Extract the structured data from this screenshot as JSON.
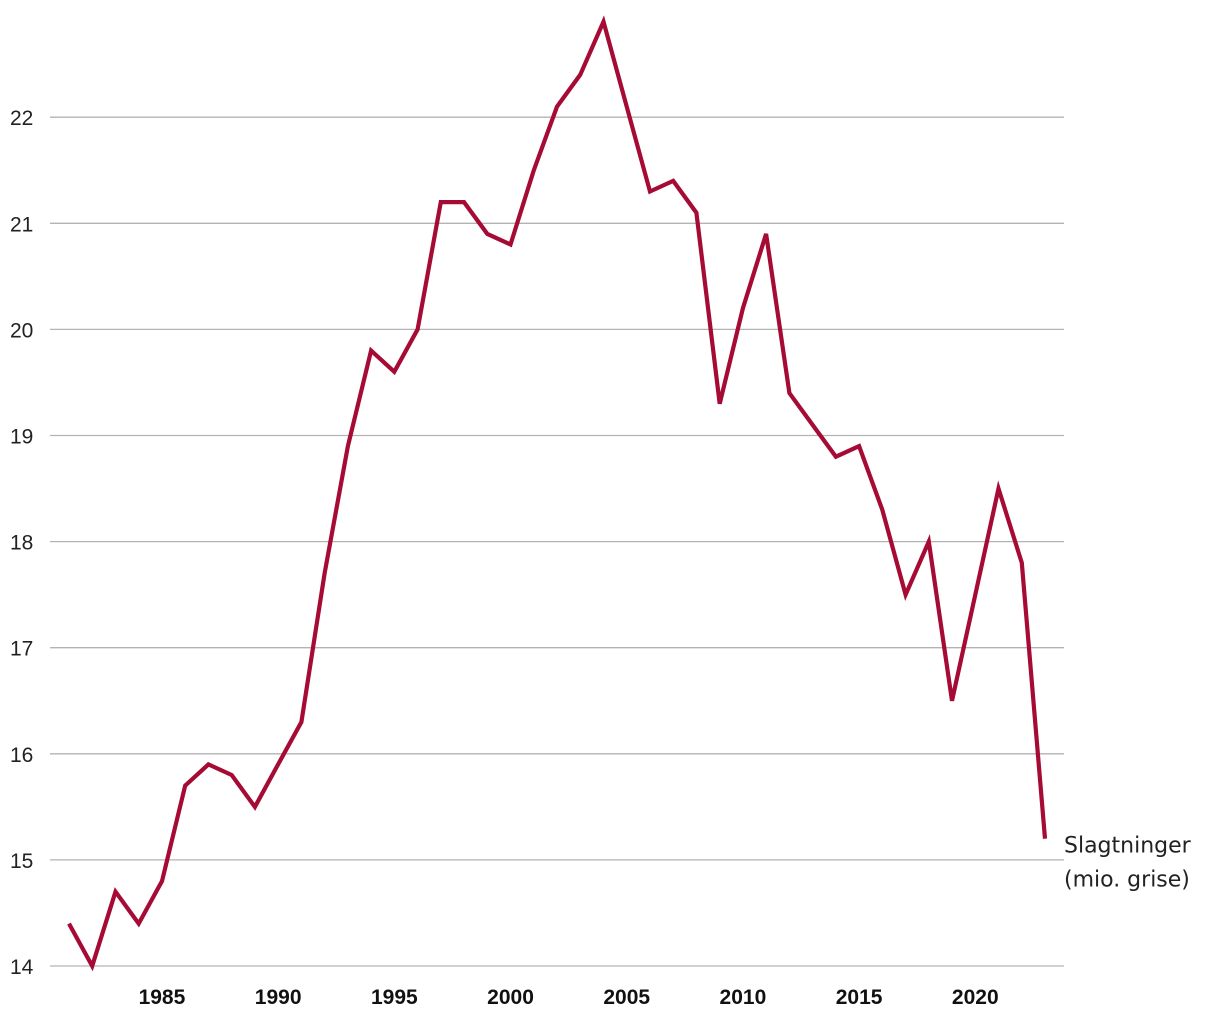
{
  "chart_data": {
    "type": "line",
    "title": "",
    "xlabel": "",
    "ylabel": "",
    "xlim": [
      1981,
      2023
    ],
    "ylim": [
      14,
      22.9
    ],
    "yticks": [
      14,
      15,
      16,
      17,
      18,
      19,
      20,
      21,
      22
    ],
    "xticks": [
      1985,
      1990,
      1995,
      2000,
      2005,
      2010,
      2015,
      2020
    ],
    "grid": true,
    "colors": {
      "series": "#a50b34",
      "grid": "#b3b3b3"
    },
    "series": [
      {
        "name": "Slagtninger (mio. grise)",
        "label_lines": [
          "Slagtninger",
          "(mio. grise)"
        ],
        "x": [
          1981,
          1982,
          1983,
          1984,
          1985,
          1986,
          1987,
          1988,
          1989,
          1990,
          1991,
          1992,
          1993,
          1994,
          1995,
          1996,
          1997,
          1998,
          1999,
          2000,
          2001,
          2002,
          2003,
          2004,
          2005,
          2006,
          2007,
          2008,
          2009,
          2010,
          2011,
          2012,
          2013,
          2014,
          2015,
          2016,
          2017,
          2018,
          2019,
          2020,
          2021,
          2022,
          2023
        ],
        "values": [
          14.4,
          14.0,
          14.7,
          14.4,
          14.8,
          15.7,
          15.9,
          15.8,
          15.5,
          15.9,
          16.3,
          17.7,
          18.9,
          19.8,
          19.6,
          20.0,
          21.2,
          21.2,
          20.9,
          20.8,
          21.5,
          22.1,
          22.4,
          22.9,
          22.1,
          21.3,
          21.4,
          21.1,
          19.3,
          20.2,
          20.9,
          19.4,
          19.1,
          18.8,
          18.9,
          18.3,
          17.5,
          18.0,
          16.5,
          17.5,
          18.5,
          17.8,
          15.2
        ]
      }
    ]
  }
}
